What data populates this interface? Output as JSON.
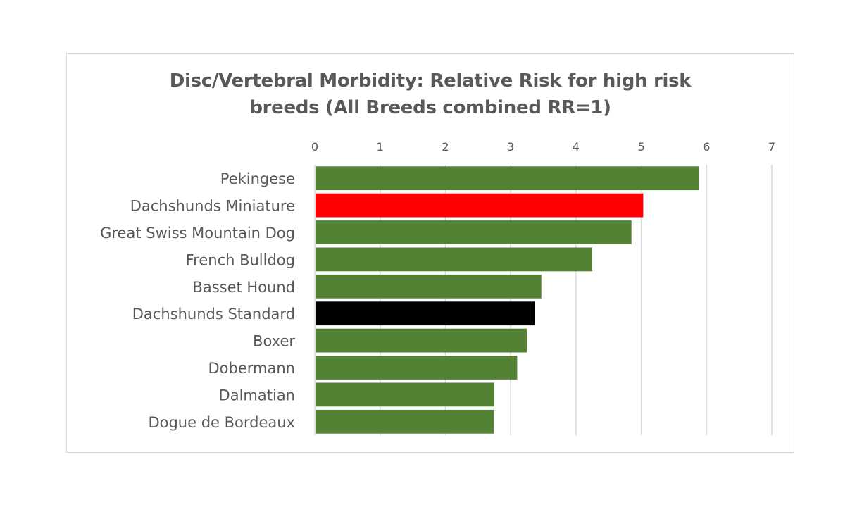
{
  "chart_data": {
    "type": "bar",
    "orientation": "horizontal",
    "title": "Disc/Vertebral Morbidity: Relative Risk for high risk\nbreeds (All Breeds combined RR=1)",
    "xlabel": "",
    "ylabel": "",
    "xlim": [
      0,
      7
    ],
    "x_ticks": [
      "0",
      "1",
      "2",
      "3",
      "4",
      "5",
      "6",
      "7"
    ],
    "x_axis_position": "top",
    "grid": true,
    "legend": "none",
    "categories": [
      "Pekingese",
      "Dachshunds Miniature",
      "Great Swiss Mountain Dog",
      "French Bulldog",
      "Basset Hound",
      "Dachshunds Standard",
      "Boxer",
      "Dobermann",
      "Dalmatian",
      "Dogue de Bordeaux"
    ],
    "values": [
      5.88,
      5.03,
      4.85,
      4.25,
      3.47,
      3.37,
      3.25,
      3.1,
      2.75,
      2.74
    ],
    "bar_colors": [
      "#548235",
      "#ff0000",
      "#548235",
      "#548235",
      "#548235",
      "#000000",
      "#548235",
      "#548235",
      "#548235",
      "#548235"
    ],
    "colors": {
      "default_bar": "#548235",
      "highlight_miniature": "#ff0000",
      "highlight_standard": "#000000",
      "gridline": "#d9d9d9",
      "text": "#595959"
    }
  }
}
